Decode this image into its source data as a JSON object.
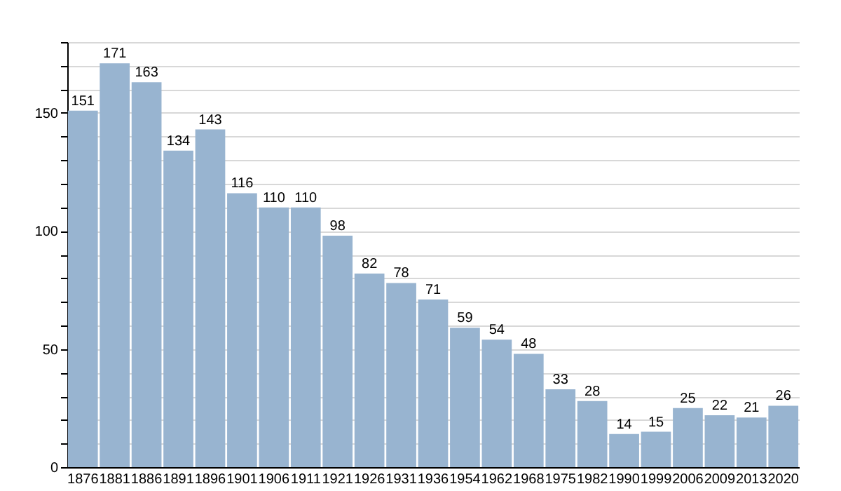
{
  "chart_data": {
    "type": "bar",
    "categories": [
      "1876",
      "1881",
      "1886",
      "1891",
      "1896",
      "1901",
      "1906",
      "1911",
      "1921",
      "1926",
      "1931",
      "1936",
      "1954",
      "1962",
      "1968",
      "1975",
      "1982",
      "1990",
      "1999",
      "2006",
      "2009",
      "2013",
      "2020"
    ],
    "values": [
      151,
      171,
      163,
      134,
      143,
      116,
      110,
      110,
      98,
      82,
      78,
      71,
      59,
      54,
      48,
      33,
      28,
      14,
      15,
      25,
      22,
      21,
      26
    ],
    "color": "#98b4d0",
    "ylim": [
      0,
      180
    ],
    "yticks": [
      0,
      {
        "value": 10,
        "label": null
      },
      {
        "value": 20,
        "label": null
      },
      {
        "value": 30,
        "label": null
      },
      {
        "value": 40,
        "label": null
      },
      50,
      {
        "value": 60,
        "label": null
      },
      {
        "value": 70,
        "label": null
      },
      {
        "value": 80,
        "label": null
      },
      {
        "value": 90,
        "label": null
      },
      100,
      {
        "value": 110,
        "label": null
      },
      {
        "value": 120,
        "label": null
      },
      {
        "value": 130,
        "label": null
      },
      {
        "value": 140,
        "label": null
      },
      150,
      {
        "value": 160,
        "label": null
      },
      {
        "value": 170,
        "label": null
      },
      {
        "value": 180,
        "label": null
      }
    ],
    "grid": true,
    "data_labels": true
  }
}
